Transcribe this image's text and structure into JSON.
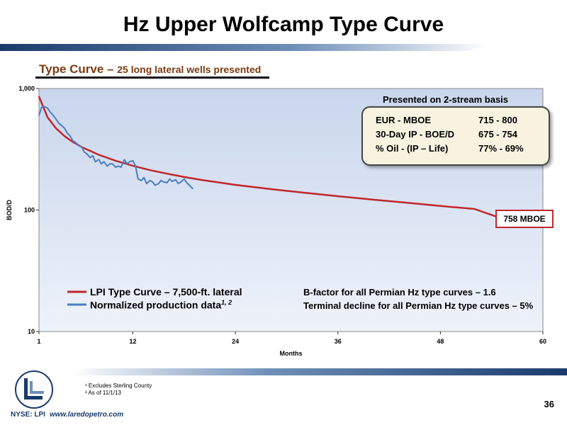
{
  "slide": {
    "title": "Hz Upper Wolfcamp Type Curve",
    "subtitle_main": "Type Curve – ",
    "subtitle_small": "25 long lateral wells presented",
    "presented_label": "Presented on 2-stream basis",
    "info": [
      {
        "label": "EUR - MBOE",
        "value": "715 - 800"
      },
      {
        "label": "30-Day IP - BOE/D",
        "value": "675 - 754"
      },
      {
        "label": "% Oil - (IP – Life)",
        "value": "77% - 69%"
      }
    ],
    "annotation": "758 MBOE",
    "notes": [
      "B-factor for all Permian Hz type curves – 1.6",
      "Terminal decline for all Permian Hz type curves – 5%"
    ],
    "footnotes": [
      "¹ Excludes Sterling County",
      "² As of 11/1/13"
    ],
    "page_number": "36",
    "ticker": "NYSE: LPI",
    "url": "www.laredopetro.com"
  },
  "chart_data": {
    "type": "line",
    "xlabel": "Months",
    "ylabel": "BOD/D",
    "xlim": [
      1,
      60
    ],
    "ylim": [
      10,
      1000
    ],
    "y_scale": "log",
    "x_ticks": [
      "1",
      "12",
      "24",
      "36",
      "48",
      "60"
    ],
    "y_ticks": [
      "10",
      "100",
      "1,000"
    ],
    "grid": false,
    "legend": "bottom-left",
    "series": [
      {
        "name": "LPI Type Curve – 7,500-ft. lateral",
        "legend_sup": "",
        "color": "#c0262d",
        "x": [
          1,
          2,
          3,
          4,
          5,
          6,
          8,
          10,
          12,
          14,
          16,
          18,
          20,
          24,
          28,
          32,
          36,
          40,
          44,
          48,
          52,
          55
        ],
        "y": [
          860,
          580,
          470,
          405,
          362,
          330,
          285,
          254,
          231,
          213,
          199,
          187,
          177,
          161,
          149,
          139,
          130,
          122,
          115,
          108,
          102,
          86
        ]
      },
      {
        "name": "Normalized production data",
        "legend_sup": "1, 2",
        "color": "#4a7ebf",
        "x": [
          1,
          1.3,
          1.6,
          2,
          2.3,
          2.6,
          3,
          3.3,
          3.6,
          4,
          4.3,
          4.6,
          5,
          5.3,
          5.6,
          6,
          6.3,
          6.6,
          7,
          7.3,
          7.6,
          8,
          8.3,
          8.6,
          9,
          9.3,
          9.6,
          10,
          10.3,
          10.6,
          11,
          11.3,
          11.6,
          12,
          12.3,
          12.6,
          13,
          13.3,
          13.6,
          14,
          14.3,
          14.6,
          15,
          15.3,
          15.6,
          16,
          16.3,
          16.6,
          17,
          17.3,
          17.6,
          18,
          18.3,
          18.6,
          19
        ],
        "y": [
          600,
          700,
          710,
          690,
          640,
          610,
          560,
          520,
          500,
          470,
          430,
          410,
          370,
          360,
          340,
          330,
          300,
          290,
          270,
          280,
          250,
          260,
          240,
          250,
          230,
          240,
          240,
          225,
          230,
          225,
          260,
          240,
          250,
          255,
          230,
          180,
          175,
          185,
          165,
          175,
          170,
          160,
          165,
          175,
          170,
          168,
          180,
          172,
          178,
          165,
          170,
          180,
          168,
          160,
          150
        ]
      }
    ]
  }
}
